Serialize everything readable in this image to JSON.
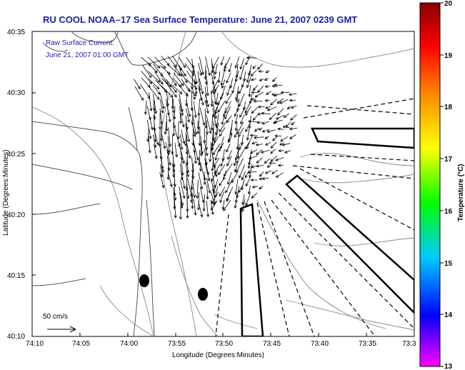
{
  "title": "RU COOL   NOAA–17  Sea Surface Temperature:  June 21, 2007 0239 GMT",
  "annotation": {
    "line1": "Raw Surface Current:",
    "line2": "June 21, 2007 01:00 GMT"
  },
  "scale_label": "50 cm/s",
  "x_axis": {
    "label": "Longitude (Degrees:Minutes)",
    "ticks": [
      "74:10",
      "74:05",
      "74:00",
      "73:55",
      "73:50",
      "73:45",
      "73:40",
      "73:35",
      "73:3"
    ]
  },
  "y_axis": {
    "label": "Latitude (Degrees:Minutes)",
    "ticks": [
      "40:35",
      "40:30",
      "40:25",
      "40:20",
      "40:15",
      "40:10"
    ]
  },
  "colorbar": {
    "label": "Temperature (°C)",
    "ticks": [
      "20",
      "19",
      "18",
      "17",
      "16",
      "15",
      "14",
      "13"
    ],
    "range": [
      13,
      20
    ],
    "colors": [
      "#ff00ff",
      "#0000ff",
      "#00ccff",
      "#00ff00",
      "#ffff00",
      "#ff8800",
      "#ff0000",
      "#8b0000"
    ]
  },
  "colors": {
    "title": "#1f1fa0",
    "bathymetry": "#888888",
    "coast": "#555555",
    "vectors": "#000000"
  }
}
